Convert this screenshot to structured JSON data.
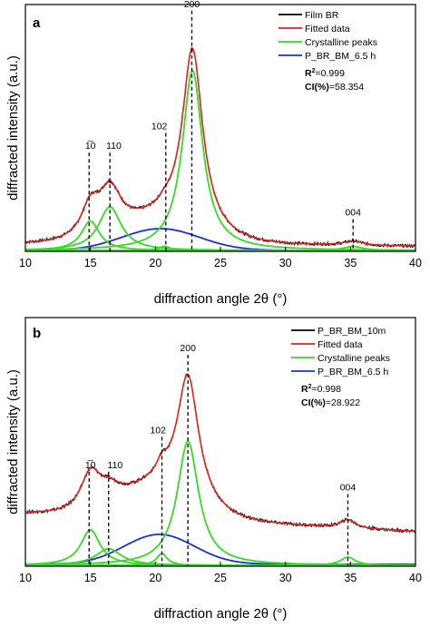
{
  "chart_data": [
    {
      "type": "line",
      "panel_label": "a",
      "xlabel": "diffraction angle 2θ (°)",
      "ylabel": "diffracted intensity (a.u.)",
      "xlim": [
        10,
        40
      ],
      "xticks": [
        10,
        15,
        20,
        25,
        30,
        35,
        40
      ],
      "yticks": false,
      "legend_placement": "top-right",
      "series_colors": {
        "measured": "#000000",
        "fit": "#e8211d",
        "crystalline": "#33dd22",
        "amorphous": "#1a2ee0"
      },
      "legend": [
        {
          "name": "Film BR",
          "color": "#000000"
        },
        {
          "name": "Fitted data",
          "color": "#e8211d"
        },
        {
          "name": "Crystalline peaks",
          "color": "#33dd22"
        },
        {
          "name": "P_BR_BM_6.5 h",
          "color": "#1a2ee0"
        }
      ],
      "stats": {
        "r2_label": "R",
        "r2_sup": "2",
        "r2_value": "=0.999",
        "ci_label": "CI(%)",
        "ci_value": "=58.354"
      },
      "peak_annotations": [
        {
          "label": "1̅0",
          "label_pos": 15.0,
          "line_pos": 14.9,
          "top": 0.4
        },
        {
          "label": "110",
          "label_pos": 16.8,
          "line_pos": 16.5,
          "top": 0.4
        },
        {
          "label": "102",
          "label_pos": 20.3,
          "line_pos": 20.8,
          "top": 0.48
        },
        {
          "label": "200",
          "label_pos": 22.8,
          "line_pos": 22.8,
          "top": 0.975
        },
        {
          "label": "004",
          "label_pos": 35.2,
          "line_pos": 35.2,
          "top": 0.13
        }
      ],
      "crystalline_peaks": [
        {
          "center": 15.0,
          "height": 0.125,
          "width": 0.85
        },
        {
          "center": 16.5,
          "height": 0.185,
          "width": 1.05
        },
        {
          "center": 20.7,
          "height": 0.018,
          "width": 0.55
        },
        {
          "center": 22.85,
          "height": 0.76,
          "width": 0.95
        },
        {
          "center": 35.2,
          "height": 0.018,
          "width": 0.9
        }
      ],
      "amorphous": {
        "center": 20.4,
        "height": 0.088,
        "width": 4.2,
        "baseline": 0.004
      },
      "fit_baseline": 0.022
    },
    {
      "type": "line",
      "panel_label": "b",
      "xlabel": "diffraction angle 2θ (°)",
      "ylabel": "diffracted intensity (a.u.)",
      "xlim": [
        10,
        40
      ],
      "xticks": [
        10,
        15,
        20,
        25,
        30,
        35,
        40
      ],
      "yticks": false,
      "legend_placement": "top-right",
      "series_colors": {
        "measured": "#000000",
        "fit": "#e8211d",
        "crystalline": "#33dd22",
        "amorphous": "#1a2ee0"
      },
      "legend": [
        {
          "name": "P_BR_BM_10m",
          "color": "#000000"
        },
        {
          "name": "Fitted data",
          "color": "#e8211d"
        },
        {
          "name": "Crystalline peaks",
          "color": "#33dd22"
        },
        {
          "name": "P_BR_BM_6.5 h",
          "color": "#1a2ee0"
        }
      ],
      "stats": {
        "r2_label": "R",
        "r2_sup": "2",
        "r2_value": "=0.998",
        "ci_label": "CI(%)",
        "ci_value": "=28.922"
      },
      "peak_annotations": [
        {
          "label": "1̅0",
          "label_pos": 15.0,
          "line_pos": 14.9,
          "top": 0.38
        },
        {
          "label": "110",
          "label_pos": 16.9,
          "line_pos": 16.4,
          "top": 0.38
        },
        {
          "label": "102",
          "label_pos": 20.2,
          "line_pos": 20.5,
          "top": 0.52
        },
        {
          "label": "200",
          "label_pos": 22.5,
          "line_pos": 22.5,
          "top": 0.85
        },
        {
          "label": "004",
          "label_pos": 34.8,
          "line_pos": 34.8,
          "top": 0.29
        }
      ],
      "crystalline_peaks": [
        {
          "center": 15.0,
          "height": 0.15,
          "width": 0.9
        },
        {
          "center": 16.4,
          "height": 0.07,
          "width": 1.2
        },
        {
          "center": 20.5,
          "height": 0.05,
          "width": 0.5
        },
        {
          "center": 22.5,
          "height": 0.52,
          "width": 1.0
        },
        {
          "center": 34.8,
          "height": 0.035,
          "width": 0.7
        }
      ],
      "amorphous": {
        "center": 20.3,
        "height": 0.12,
        "width": 3.8,
        "baseline": 0.008
      },
      "fit_baseline": 0.2
    }
  ]
}
